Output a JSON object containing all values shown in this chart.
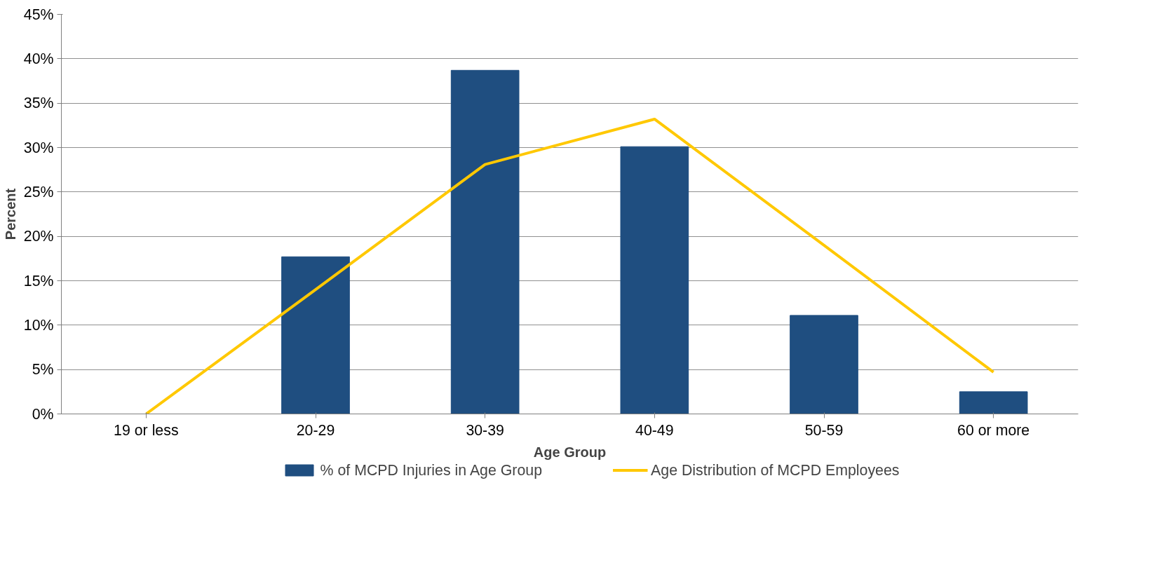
{
  "chart_data": {
    "type": "bar",
    "xlabel": "Age Group",
    "ylabel": "Percent",
    "categories": [
      "19 or less",
      "20-29",
      "30-39",
      "40-49",
      "50-59",
      "60 or more"
    ],
    "series": [
      {
        "name": "% of MCPD Injuries in Age Group",
        "color": "#1f4e80",
        "values": [
          0,
          17.7,
          38.7,
          30.1,
          11.1,
          2.5
        ]
      },
      {
        "name": "Age Distribution of MCPD Employees",
        "color": "#ffc800",
        "type": "line",
        "values": [
          0,
          14.0,
          28.1,
          33.2,
          19.0,
          4.7
        ]
      }
    ],
    "ylim": [
      0,
      45
    ],
    "yticks": [
      {
        "value": 0,
        "label": "0%"
      },
      {
        "value": 5,
        "label": "5%"
      },
      {
        "value": 10,
        "label": "10%"
      },
      {
        "value": 15,
        "label": "15%"
      },
      {
        "value": 20,
        "label": "20%"
      },
      {
        "value": 25,
        "label": "25%"
      },
      {
        "value": 30,
        "label": "30%"
      },
      {
        "value": 35,
        "label": "35%"
      },
      {
        "value": 40,
        "label": "40%"
      },
      {
        "value": 45,
        "label": "45%"
      }
    ],
    "grid": "y",
    "legend": "bottom",
    "marker": "none",
    "line_style": "solid"
  }
}
